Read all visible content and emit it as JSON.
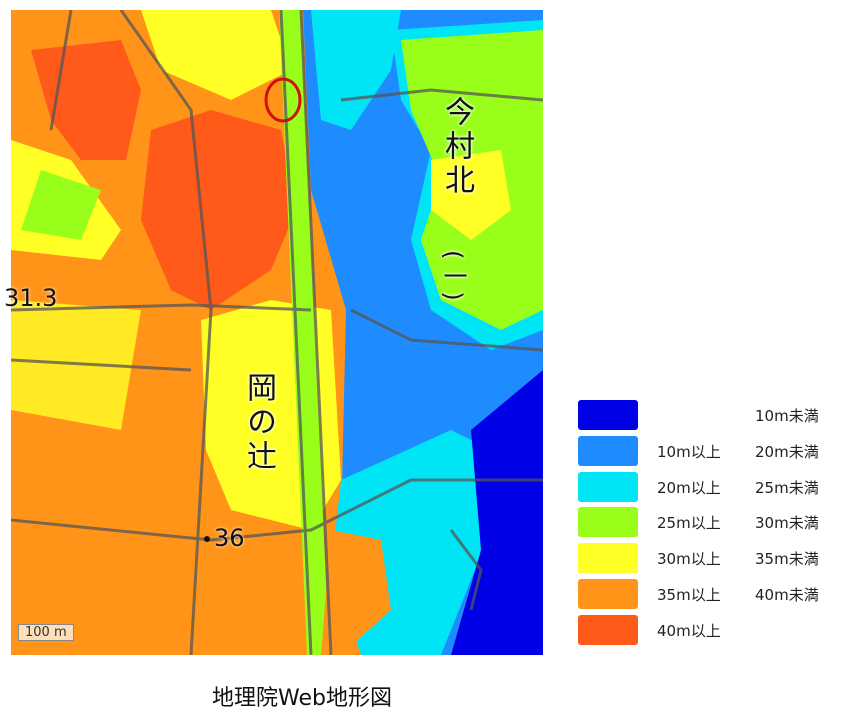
{
  "map": {
    "labels": {
      "imamura_kita": "今村北",
      "kakko": "(一)",
      "okanotsuji": "岡の辻",
      "elev_left": "31.3",
      "elev_point": "36",
      "scale": "100 m"
    },
    "legend": [
      {
        "color": "#0000e6",
        "from": "",
        "to": "10m未満"
      },
      {
        "color": "#1e8cff",
        "from": "10m以上",
        "to": "20m未満"
      },
      {
        "color": "#00e5f5",
        "from": "20m以上",
        "to": "25m未満"
      },
      {
        "color": "#99ff1a",
        "from": "25m以上",
        "to": "30m未満"
      },
      {
        "color": "#ffff26",
        "from": "30m以上",
        "to": "35m未満"
      },
      {
        "color": "#ff9419",
        "from": "35m以上",
        "to": "40m未満"
      },
      {
        "color": "#ff5a19",
        "from": "40m以上",
        "to": ""
      }
    ],
    "caption": "地理院Web地形図"
  }
}
